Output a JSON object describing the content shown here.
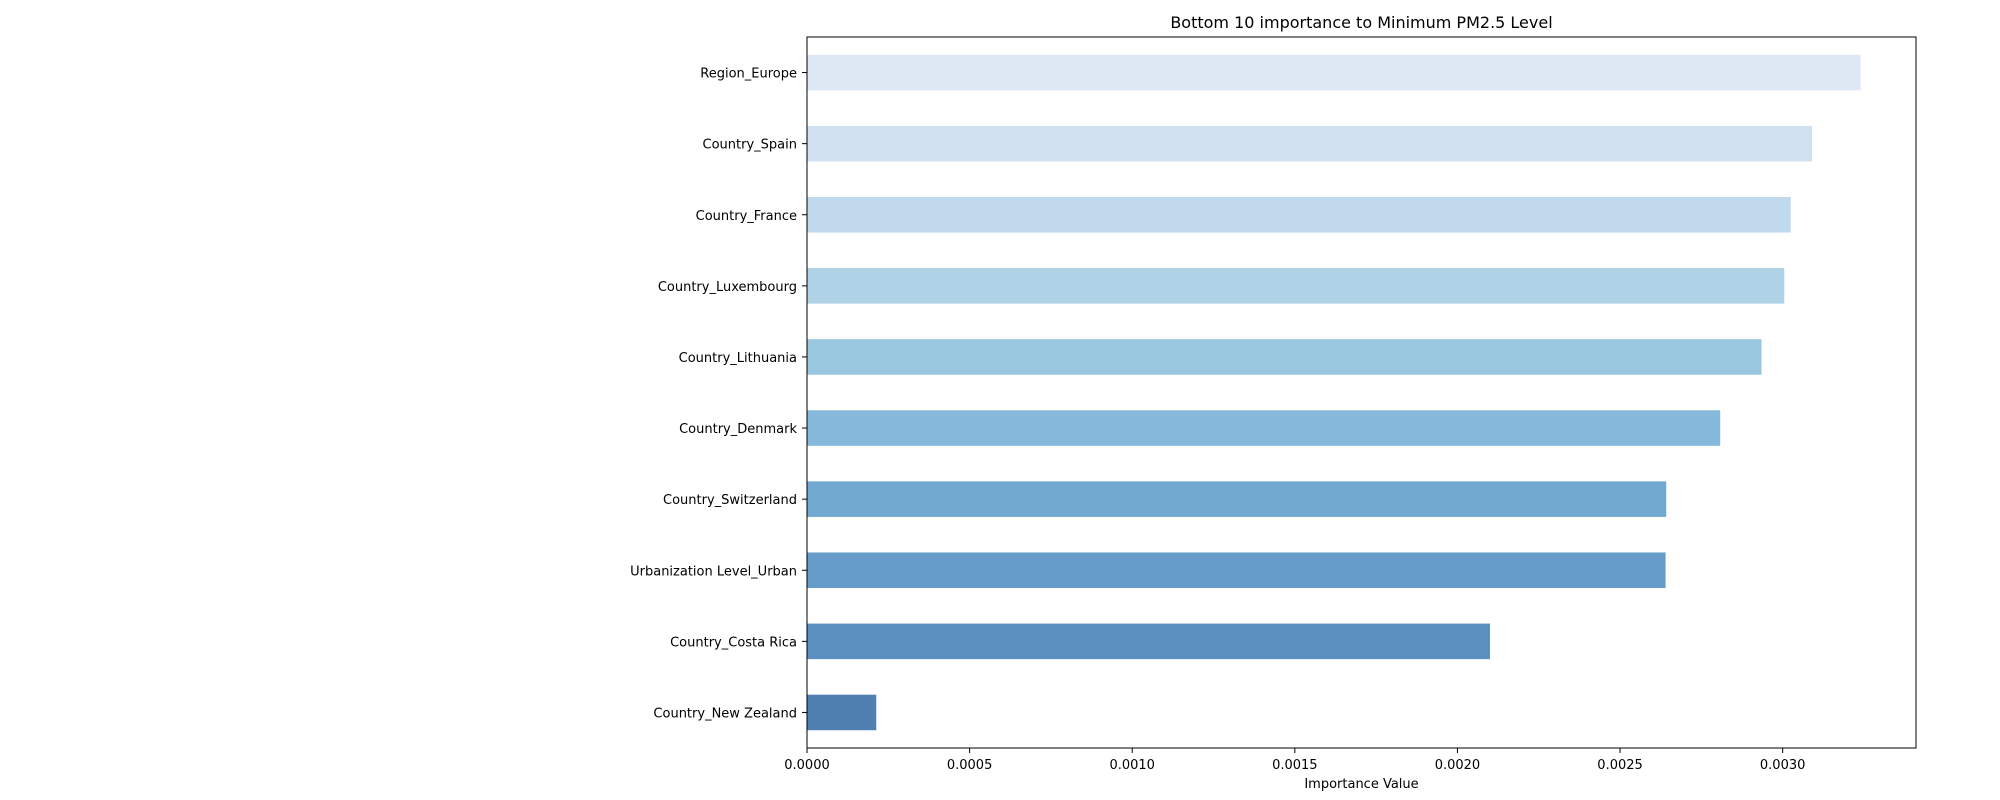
{
  "chart_data": {
    "type": "bar",
    "orientation": "horizontal",
    "title": "Bottom 10 importance to Minimum PM2.5 Level",
    "xlabel": "Importance Value",
    "ylabel": "",
    "categories": [
      "Region_Europe",
      "Country_Spain",
      "Country_France",
      "Country_Luxembourg",
      "Country_Lithuania",
      "Country_Denmark",
      "Country_Switzerland",
      "Urbanization Level_Urban",
      "Country_Costa Rica",
      "Country_New Zealand"
    ],
    "values": [
      0.00324,
      0.00309,
      0.003025,
      0.003005,
      0.002935,
      0.002808,
      0.002642,
      0.00264,
      0.0021,
      0.000213
    ],
    "colors": [
      "#dee8f4",
      "#d0e0f0",
      "#c1d9ec",
      "#afd2e7",
      "#9ac7e0",
      "#85b8db",
      "#72a9d1",
      "#659cca",
      "#5a8fc0",
      "#5080b2"
    ],
    "xlim": [
      0,
      0.00341
    ],
    "xticks": [
      {
        "value": 0,
        "label": "0.0000"
      },
      {
        "value": 0.0005,
        "label": "0.0005"
      },
      {
        "value": 0.001,
        "label": "0.0010"
      },
      {
        "value": 0.0015,
        "label": "0.0015"
      },
      {
        "value": 0.002,
        "label": "0.0020"
      },
      {
        "value": 0.0025,
        "label": "0.0025"
      },
      {
        "value": 0.003,
        "label": "0.0030"
      }
    ],
    "grid": false,
    "legend": "none"
  }
}
